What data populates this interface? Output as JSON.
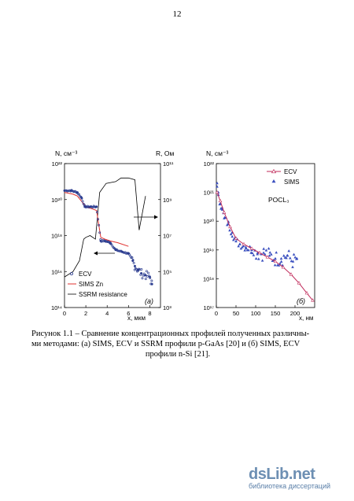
{
  "page_number": "12",
  "caption": {
    "line1": "Рисунок 1.1 – Сравнение концентрационных профилей полученных различны-",
    "line2": "ми методами: (а) SIMS, ECV и SSRM профили p-GaAs [20] и (б) SIMS, ECV",
    "line3": "профили n-Si [21]."
  },
  "watermark": {
    "logo": "dsLib.net",
    "subtitle": "библиотека диссертаций"
  },
  "chart_data": [
    {
      "type": "scatter",
      "panel_label": "(a)",
      "ylabel_left": "N, см⁻³",
      "ylabel_right": "R, Ом",
      "xlabel": "x, мкм",
      "x_ticks": [
        "0",
        "2",
        "4",
        "6",
        "8"
      ],
      "y_left_ticks": [
        "10¹⁴",
        "10¹⁶",
        "10¹⁸",
        "10²⁰",
        "10²²"
      ],
      "y_right_ticks": [
        "10³",
        "10⁵",
        "10⁷",
        "10⁹",
        "10¹¹"
      ],
      "xlim": [
        0,
        9
      ],
      "ylim_left_log10": [
        14,
        22
      ],
      "ylim_right_log10": [
        3,
        11
      ],
      "legend": [
        "ECV",
        "SIMS Zn",
        "SSRM resistance"
      ],
      "series": [
        {
          "name": "ECV",
          "x": [
            0.0,
            0.6,
            1.2,
            1.6,
            1.9,
            2.4,
            3.0,
            3.4,
            3.8,
            4.3,
            4.8,
            5.4,
            6.0,
            6.4,
            6.6,
            6.9,
            7.2,
            7.6,
            8.0,
            8.2
          ],
          "log10_N": [
            20.5,
            20.5,
            20.4,
            20.1,
            19.6,
            19.6,
            19.6,
            17.7,
            17.7,
            17.6,
            17.2,
            17.1,
            17.0,
            16.6,
            16.3,
            16.1,
            15.9,
            15.8,
            15.7,
            15.3
          ]
        },
        {
          "name": "SIMS Zn",
          "x": [
            0.0,
            0.8,
            1.2,
            1.6,
            2.0,
            2.5,
            3.0,
            3.4,
            3.8,
            4.3,
            5.0,
            6.0
          ],
          "log10_N": [
            20.4,
            20.3,
            20.2,
            19.9,
            19.6,
            19.5,
            19.4,
            17.9,
            17.8,
            17.7,
            17.6,
            17.4
          ]
        },
        {
          "name": "SSRM resistance",
          "x": [
            0.0,
            0.8,
            1.4,
            1.8,
            2.0,
            2.4,
            2.9,
            3.3,
            3.9,
            4.8,
            5.3,
            6.0,
            6.6,
            7.0,
            7.6
          ],
          "log10_R": [
            4.7,
            5.0,
            5.6,
            6.8,
            6.9,
            7.0,
            6.8,
            9.4,
            9.9,
            10.0,
            10.2,
            10.2,
            10.1,
            7.3,
            9.2
          ]
        }
      ]
    },
    {
      "type": "scatter",
      "panel_label": "(б)",
      "ylabel": "N, см⁻³",
      "xlabel": "x, нм",
      "annotation": "POCL₃",
      "x_ticks": [
        "0",
        "50",
        "100",
        "150",
        "200"
      ],
      "y_ticks": [
        "10¹⁷",
        "10¹⁸",
        "10¹⁹",
        "10²⁰",
        "10²¹",
        "10²²"
      ],
      "xlim": [
        0,
        250
      ],
      "ylim_log10": [
        17,
        22
      ],
      "legend": [
        "ECV",
        "SIMS"
      ],
      "series": [
        {
          "name": "ECV",
          "x": [
            2,
            10,
            20,
            35,
            50,
            70,
            90,
            110,
            130,
            150,
            170,
            190,
            210,
            230,
            245
          ],
          "log10_N": [
            21.0,
            20.7,
            20.3,
            19.8,
            19.4,
            19.2,
            19.05,
            18.9,
            18.75,
            18.6,
            18.4,
            18.15,
            17.85,
            17.5,
            17.25
          ]
        },
        {
          "name": "SIMS",
          "x": [
            2,
            5,
            10,
            15,
            20,
            30,
            40,
            50,
            60,
            75,
            90,
            105,
            120,
            135,
            150,
            165,
            180,
            195,
            205
          ],
          "log10_N": [
            21.2,
            21.0,
            20.6,
            20.4,
            20.1,
            19.9,
            19.6,
            19.3,
            19.2,
            19.1,
            19.0,
            18.9,
            18.9,
            18.8,
            18.7,
            18.7,
            18.8,
            18.6,
            18.7
          ]
        }
      ]
    }
  ]
}
